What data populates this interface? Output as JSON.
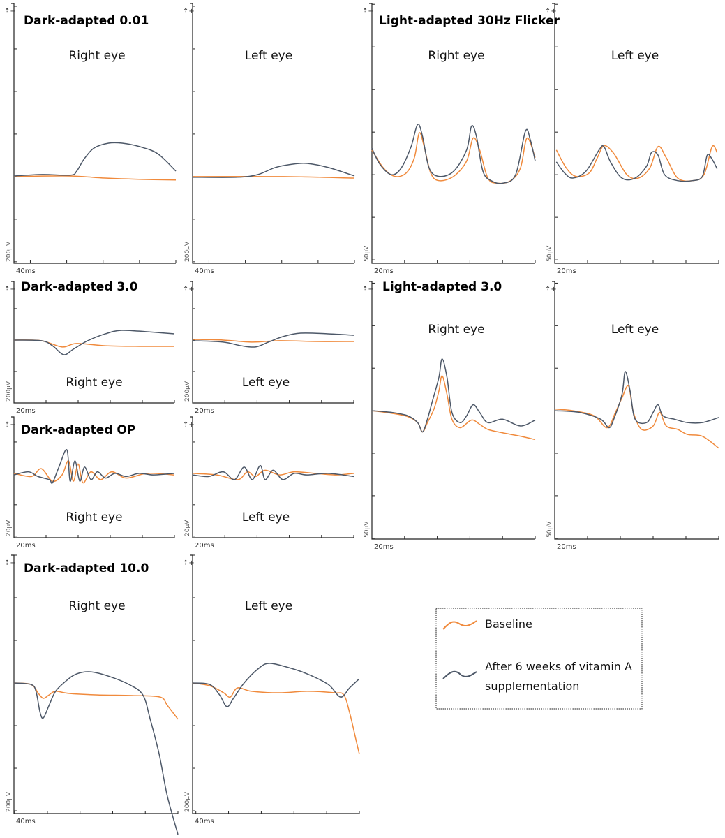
{
  "colors": {
    "baseline": "#f08a3c",
    "after": "#4d5868"
  },
  "legend": {
    "baseline": "Baseline",
    "after_line1": "After 6 weeks of vitamin A",
    "after_line2": "supplementation"
  },
  "polarity_symbol": "⇡+",
  "chart_data": [
    {
      "type": "line",
      "title": "Dark-adapted 0.01",
      "subtitle": "Right eye",
      "xlabel": "40ms",
      "ylabel": "200µV",
      "xlim": [
        0,
        178
      ],
      "ylim": [
        -407,
        813
      ],
      "xdiv": 40,
      "ydiv": 200,
      "series": [
        {
          "name": "Baseline",
          "x": [
            0,
            60,
            100,
            140,
            178
          ],
          "y": [
            0,
            3,
            -7,
            -13,
            -16
          ]
        },
        {
          "name": "After 6 weeks of vitamin A supplementation",
          "x": [
            0,
            31,
            62,
            69,
            77,
            88,
            104,
            119,
            138,
            158,
            178
          ],
          "y": [
            3,
            10,
            7,
            26,
            82,
            134,
            157,
            157,
            141,
            108,
            26
          ]
        }
      ]
    },
    {
      "type": "line",
      "title": "",
      "subtitle": "Left eye",
      "xlabel": "40ms",
      "ylabel": "200µV",
      "xlim": [
        0,
        178
      ],
      "ylim": [
        -407,
        813
      ],
      "xdiv": 40,
      "ydiv": 200,
      "series": [
        {
          "name": "Baseline",
          "x": [
            0,
            100,
            178
          ],
          "y": [
            0,
            0,
            -7
          ]
        },
        {
          "name": "After 6 weeks of vitamin A supplementation",
          "x": [
            0,
            49,
            72,
            91,
            111,
            126,
            149,
            178
          ],
          "y": [
            -3,
            -3,
            10,
            43,
            59,
            62,
            43,
            3
          ]
        }
      ]
    },
    {
      "type": "line",
      "title": "Light-adapted 30Hz Flicker",
      "subtitle": "Right eye",
      "xlabel": "20ms",
      "ylabel": "50µV",
      "xlim": [
        0,
        100
      ],
      "ylim": [
        -104,
        201
      ],
      "xdiv": 20,
      "ydiv": 50,
      "series": [
        {
          "name": "Baseline",
          "x": [
            0,
            7,
            14,
            21,
            26,
            29,
            32,
            36,
            41,
            50,
            58,
            62,
            66,
            71,
            77,
            85,
            91,
            95,
            100
          ],
          "y": [
            29,
            8,
            -2,
            2,
            20,
            49,
            33,
            2,
            -7,
            -2,
            16,
            43,
            29,
            -4,
            -10,
            -7,
            8,
            43,
            20
          ]
        },
        {
          "name": "After 6 weeks of vitamin A supplementation",
          "x": [
            0,
            5,
            12,
            18,
            24,
            28,
            31,
            35,
            41,
            50,
            58,
            61,
            64,
            68,
            73,
            80,
            88,
            94,
            97,
            100
          ],
          "y": [
            31,
            12,
            0,
            8,
            33,
            59,
            45,
            8,
            -2,
            4,
            29,
            57,
            45,
            4,
            -7,
            -10,
            0,
            51,
            41,
            16
          ]
        }
      ]
    },
    {
      "type": "line",
      "title": "",
      "subtitle": "Left eye",
      "xlabel": "20ms",
      "ylabel": "50µV",
      "xlim": [
        0,
        100
      ],
      "ylim": [
        -104,
        201
      ],
      "xdiv": 20,
      "ydiv": 50,
      "series": [
        {
          "name": "Baseline",
          "x": [
            1,
            7,
            13,
            21,
            26,
            30,
            36,
            44,
            51,
            58,
            63,
            68,
            75,
            84,
            91,
            96,
            99
          ],
          "y": [
            29,
            8,
            -2,
            2,
            20,
            34,
            25,
            0,
            -4,
            8,
            33,
            20,
            -4,
            -7,
            0,
            33,
            26
          ]
        },
        {
          "name": "After 6 weeks of vitamin A supplementation",
          "x": [
            1,
            6,
            11,
            19,
            27,
            30,
            34,
            41,
            49,
            56,
            59,
            63,
            67,
            75,
            84,
            90,
            93,
            96,
            99
          ],
          "y": [
            15,
            2,
            -4,
            4,
            29,
            33,
            15,
            -4,
            -4,
            10,
            26,
            23,
            0,
            -7,
            -7,
            -2,
            23,
            18,
            7
          ]
        }
      ]
    },
    {
      "type": "line",
      "title": "Dark-adapted 3.0",
      "subtitle": "Right eye",
      "xlabel": "20ms",
      "ylabel": "200µV",
      "xlim": [
        0,
        100
      ],
      "ylim": [
        -400,
        373
      ],
      "xdiv": 20,
      "ydiv": 200,
      "series": [
        {
          "name": "Baseline",
          "x": [
            0,
            17,
            30,
            39,
            57,
            78,
            100
          ],
          "y": [
            0,
            -4,
            -44,
            -22,
            -36,
            -40,
            -40
          ]
        },
        {
          "name": "After 6 weeks of vitamin A supplementation",
          "x": [
            0,
            17,
            24,
            31,
            37,
            46,
            57,
            67,
            83,
            100
          ],
          "y": [
            0,
            -4,
            -36,
            -93,
            -58,
            -4,
            40,
            62,
            53,
            40
          ]
        }
      ]
    },
    {
      "type": "line",
      "title": "",
      "subtitle": "Left eye",
      "xlabel": "20ms",
      "ylabel": "200µV",
      "xlim": [
        0,
        100
      ],
      "ylim": [
        -400,
        373
      ],
      "xdiv": 20,
      "ydiv": 200,
      "series": [
        {
          "name": "Baseline",
          "x": [
            0,
            19,
            37,
            54,
            76,
            100
          ],
          "y": [
            4,
            0,
            -13,
            -4,
            -9,
            -9
          ]
        },
        {
          "name": "After 6 weeks of vitamin A supplementation",
          "x": [
            0,
            19,
            30,
            39,
            47,
            56,
            67,
            84,
            100
          ],
          "y": [
            -4,
            -13,
            -36,
            -44,
            -13,
            22,
            44,
            40,
            31
          ]
        }
      ]
    },
    {
      "type": "line",
      "title": "Dark-adapted OP",
      "subtitle": "Right eye",
      "xlabel": "20ms",
      "ylabel": "20µV",
      "xlim": [
        0,
        100
      ],
      "ylim": [
        -41,
        36
      ],
      "xdiv": 20,
      "ydiv": 20,
      "series": [
        {
          "name": "Baseline",
          "x": [
            0,
            11,
            17,
            24,
            30,
            34,
            37,
            40,
            43,
            48,
            54,
            61,
            70,
            83,
            100
          ],
          "y": [
            0,
            -2,
            3,
            -5,
            -1,
            8,
            -5,
            6,
            -6,
            1,
            -4,
            1,
            -3,
            0,
            -1
          ]
        },
        {
          "name": "After 6 weeks of vitamin A supplementation",
          "x": [
            0,
            9,
            15,
            22,
            24,
            28,
            33,
            35,
            38,
            41,
            44,
            48,
            52,
            57,
            63,
            70,
            78,
            87,
            100
          ],
          "y": [
            -1,
            1,
            -2,
            -4,
            -6,
            4,
            15,
            -5,
            8,
            -5,
            4,
            -4,
            1,
            -3,
            0,
            -2,
            0,
            -1,
            0
          ]
        }
      ]
    },
    {
      "type": "line",
      "title": "",
      "subtitle": "Left eye",
      "xlabel": "20ms",
      "ylabel": "20µV",
      "xlim": [
        0,
        100
      ],
      "ylim": [
        -41,
        36
      ],
      "xdiv": 20,
      "ydiv": 20,
      "series": [
        {
          "name": "Baseline",
          "x": [
            0,
            15,
            28,
            34,
            39,
            45,
            54,
            63,
            76,
            89,
            100
          ],
          "y": [
            0,
            -1,
            -4,
            1,
            -2,
            2,
            -1,
            1,
            0,
            -1,
            0
          ]
        },
        {
          "name": "After 6 weeks of vitamin A supplementation",
          "x": [
            0,
            10,
            19,
            26,
            32,
            37,
            42,
            45,
            50,
            56,
            63,
            71,
            84,
            100
          ],
          "y": [
            -1,
            -2,
            1,
            -4,
            4,
            -4,
            5,
            -4,
            2,
            -4,
            0,
            -1,
            0,
            -2
          ]
        }
      ]
    },
    {
      "type": "line",
      "title": "Light-adapted 3.0",
      "subtitle": "Right eye",
      "xlabel": "20ms",
      "ylabel": "50µV",
      "xlim": [
        0,
        100
      ],
      "ylim": [
        -151,
        152
      ],
      "xdiv": 20,
      "ydiv": 50,
      "series": [
        {
          "name": "Baseline",
          "x": [
            0,
            12,
            22,
            28,
            31,
            34,
            38,
            41,
            43,
            46,
            49,
            54,
            61,
            66,
            71,
            80,
            91,
            100
          ],
          "y": [
            0,
            -3,
            -7,
            -14,
            -25,
            -14,
            2,
            23,
            41,
            19,
            -10,
            -20,
            -11,
            -16,
            -22,
            -26,
            -30,
            -34
          ]
        },
        {
          "name": "After 6 weeks of vitamin A supplementation",
          "x": [
            0,
            12,
            22,
            28,
            31,
            34,
            37,
            41,
            43,
            46,
            49,
            54,
            58,
            62,
            66,
            71,
            80,
            91,
            100
          ],
          "y": [
            0,
            -2,
            -6,
            -14,
            -25,
            -10,
            11,
            39,
            61,
            39,
            -2,
            -14,
            -6,
            7,
            -2,
            -14,
            -10,
            -18,
            -11
          ]
        }
      ]
    },
    {
      "type": "line",
      "title": "",
      "subtitle": "Left eye",
      "xlabel": "20ms",
      "ylabel": "50µV",
      "xlim": [
        0,
        100
      ],
      "ylim": [
        -151,
        152
      ],
      "xdiv": 20,
      "ydiv": 50,
      "series": [
        {
          "name": "Baseline",
          "x": [
            0,
            11,
            24,
            32,
            37,
            41,
            45,
            48,
            53,
            60,
            64,
            68,
            75,
            81,
            90,
            100
          ],
          "y": [
            2,
            0,
            -6,
            -20,
            -2,
            15,
            29,
            -2,
            -22,
            -18,
            -2,
            -18,
            -22,
            -28,
            -30,
            -44
          ]
        },
        {
          "name": "After 6 weeks of vitamin A supplementation",
          "x": [
            0,
            15,
            28,
            33,
            36,
            41,
            43,
            46,
            49,
            56,
            60,
            63,
            66,
            73,
            81,
            90,
            100
          ],
          "y": [
            0,
            -2,
            -10,
            -20,
            -10,
            19,
            46,
            23,
            -10,
            -14,
            -2,
            7,
            -6,
            -10,
            -14,
            -14,
            -8
          ]
        }
      ]
    },
    {
      "type": "line",
      "title": "Dark-adapted 10.0",
      "subtitle": "Right eye",
      "xlabel": "40ms",
      "ylabel": "200µV",
      "xlim": [
        0,
        201
      ],
      "ylim": [
        -613,
        600
      ],
      "xdiv": 40,
      "ydiv": 200,
      "series": [
        {
          "name": "Baseline",
          "x": [
            0,
            21,
            30,
            36,
            43,
            51,
            68,
            103,
            145,
            179,
            188,
            201
          ],
          "y": [
            0,
            -7,
            -49,
            -72,
            -56,
            -39,
            -49,
            -56,
            -59,
            -66,
            -105,
            -170
          ]
        },
        {
          "name": "After 6 weeks of vitamin A supplementation",
          "x": [
            0,
            21,
            27,
            32,
            36,
            43,
            51,
            64,
            77,
            94,
            115,
            141,
            158,
            167,
            178,
            188,
            201
          ],
          "y": [
            0,
            -7,
            -39,
            -138,
            -164,
            -105,
            -39,
            10,
            43,
            52,
            33,
            -7,
            -56,
            -170,
            -334,
            -531,
            -711
          ]
        }
      ]
    },
    {
      "type": "line",
      "title": "",
      "subtitle": "Left eye",
      "xlabel": "40ms",
      "ylabel": "200µV",
      "xlim": [
        0,
        204
      ],
      "ylim": [
        -613,
        600
      ],
      "xdiv": 40,
      "ydiv": 200,
      "series": [
        {
          "name": "Baseline",
          "x": [
            0,
            21,
            38,
            46,
            55,
            72,
            106,
            140,
            174,
            185,
            192,
            200,
            204
          ],
          "y": [
            0,
            -13,
            -46,
            -66,
            -23,
            -39,
            -46,
            -39,
            -46,
            -56,
            -138,
            -269,
            -334
          ]
        },
        {
          "name": "After 6 weeks of vitamin A supplementation",
          "x": [
            0,
            21,
            33,
            42,
            50,
            63,
            80,
            93,
            115,
            140,
            166,
            181,
            192,
            204
          ],
          "y": [
            0,
            -7,
            -56,
            -111,
            -72,
            0,
            66,
            92,
            75,
            43,
            -7,
            -66,
            -23,
            20
          ]
        }
      ]
    }
  ]
}
